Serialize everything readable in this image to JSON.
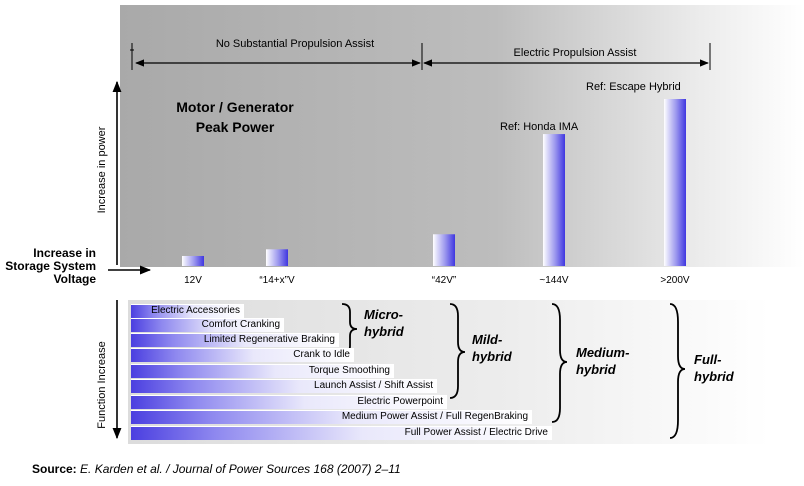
{
  "chart_data": {
    "type": "bar",
    "title": "Motor / Generator Peak Power",
    "xlabel": "Increase in Storage System Voltage",
    "ylabel": "Increase in power",
    "categories": [
      "12V",
      "“14+x”V",
      "“42V”",
      "~144V",
      ">200V"
    ],
    "values": [
      6,
      10,
      19,
      79,
      100
    ],
    "ylim": [
      0,
      100
    ],
    "bar_labels": [
      "",
      "",
      "",
      "Ref: Honda IMA",
      "Ref: Escape Hybrid"
    ],
    "regions": [
      {
        "label": "No Substantial Propulsion Assist"
      },
      {
        "label": "Electric Propulsion Assist"
      }
    ],
    "grid": false,
    "bar_color": "#3f36e0"
  },
  "function_chart": {
    "axis_label": "Function Increase",
    "functions": [
      {
        "label": "Electric Accessories"
      },
      {
        "label": "Comfort Cranking"
      },
      {
        "label": "Limited Regenerative Braking"
      },
      {
        "label": "Crank to Idle"
      },
      {
        "label": "Torque Smoothing"
      },
      {
        "label": "Launch Assist / Shift Assist"
      },
      {
        "label": "Electric Powerpoint"
      },
      {
        "label": "Medium Power Assist / Full RegenBraking"
      },
      {
        "label": "Full Power Assist /  Electric Drive"
      }
    ],
    "categories": [
      {
        "name": "Micro-hybrid",
        "line1": "Micro-",
        "line2": "hybrid"
      },
      {
        "name": "Mild-hybrid",
        "line1": "Mild-",
        "line2": "hybrid"
      },
      {
        "name": "Medium-hybrid",
        "line1": "Medium-",
        "line2": "hybrid"
      },
      {
        "name": "Full-hybrid",
        "line1": "Full-",
        "line2": "hybrid"
      }
    ]
  },
  "source": {
    "key": "Source:",
    "citation": "E. Karden et al. / Journal of Power Sources 168 (2007) 2–11"
  }
}
